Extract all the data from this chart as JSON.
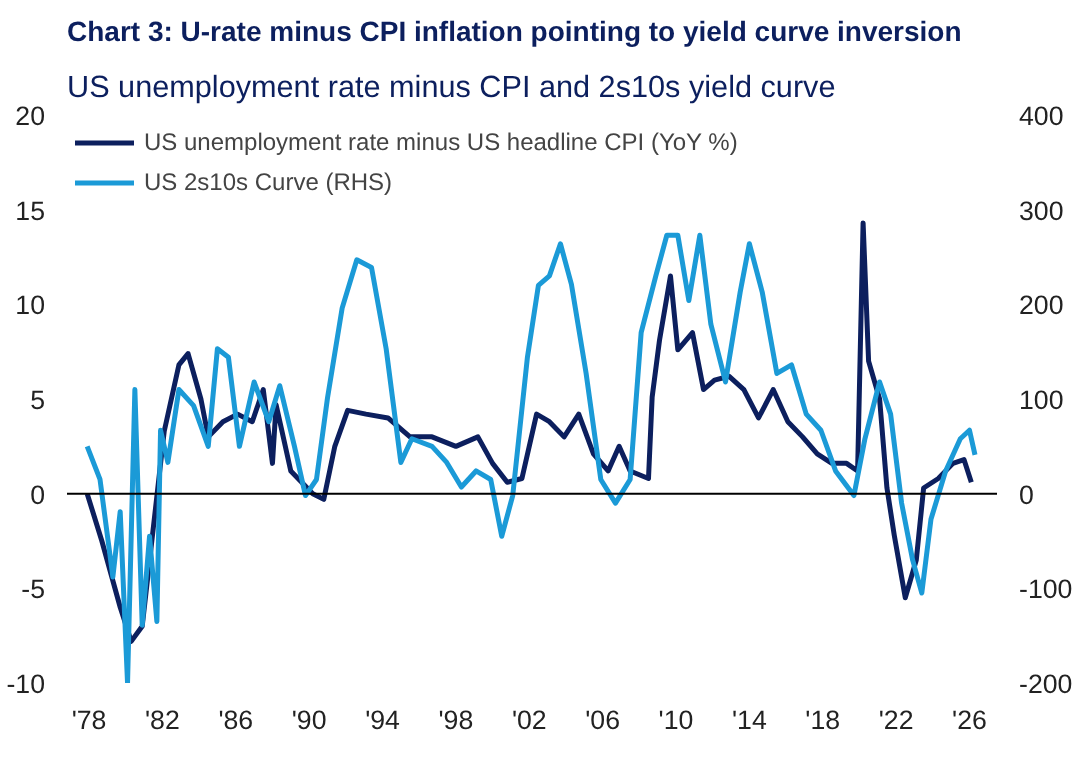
{
  "chart_data": {
    "type": "line",
    "title": "Chart 3: U-rate minus CPI inflation pointing to yield curve inversion",
    "subtitle": "US unemployment rate minus CPI and 2s10s yield curve",
    "series": [
      {
        "name": "US unemployment rate minus US headline CPI (YoY %)",
        "color": "#0c1f5e",
        "x": [
          1977.9,
          1978.7,
          1979.7,
          1980.3,
          1980.9,
          1982.1,
          1982.9,
          1983.4,
          1984.1,
          1984.5,
          1985.3,
          1986.1,
          1986.9,
          1987.5,
          1988.0,
          1988.2,
          1989.0,
          1990.2,
          1990.8,
          1991.4,
          1992.1,
          1993.1,
          1994.3,
          1995.5,
          1996.7,
          1998.0,
          1999.2,
          2000.0,
          2000.8,
          2001.6,
          2002.4,
          2003.1,
          2003.9,
          2004.7,
          2005.5,
          2006.3,
          2006.9,
          2007.5,
          2008.5,
          2008.7,
          2009.1,
          2009.7,
          2010.1,
          2010.9,
          2011.5,
          2012.1,
          2012.9,
          2013.7,
          2014.5,
          2015.3,
          2016.1,
          2016.9,
          2017.7,
          2018.5,
          2019.3,
          2019.9,
          2020.2,
          2020.5,
          2021.1,
          2021.5,
          2021.9,
          2022.5,
          2023.1,
          2023.5,
          2024.3,
          2025.1,
          2025.7,
          2026.1
        ],
        "values": [
          0,
          -2.5,
          -6,
          -7.8,
          -7,
          3.3,
          6.8,
          7.4,
          5,
          3,
          3.8,
          4.2,
          3.8,
          5.5,
          1.6,
          4.7,
          1.2,
          0,
          -0.3,
          2.5,
          4.4,
          4.2,
          4,
          3,
          3,
          2.5,
          3,
          1.6,
          0.6,
          0.8,
          4.2,
          3.8,
          3,
          4.2,
          2.1,
          1.2,
          2.5,
          1.2,
          0.8,
          5.1,
          8.1,
          11.5,
          7.6,
          8.5,
          5.5,
          6,
          6.2,
          5.5,
          4,
          5.5,
          3.8,
          3,
          2.1,
          1.6,
          1.6,
          1.2,
          14.3,
          7,
          5,
          0.3,
          -2.2,
          -5.5,
          -3.5,
          0.3,
          0.8,
          1.6,
          1.8,
          0.6
        ]
      },
      {
        "name": "US 2s10s Curve (RHS)",
        "color": "#1b9ad7",
        "axis": "y2",
        "x": [
          1977.9,
          1978.6,
          1979.3,
          1979.7,
          1980.1,
          1980.5,
          1980.9,
          1981.3,
          1981.7,
          1981.9,
          1982.3,
          1982.9,
          1983.7,
          1984.5,
          1985.0,
          1985.6,
          1986.2,
          1987.0,
          1987.8,
          1988.4,
          1989.2,
          1989.8,
          1990.4,
          1991.0,
          1991.8,
          1992.6,
          1993.4,
          1994.2,
          1995.0,
          1995.6,
          1996.7,
          1997.5,
          1998.3,
          1999.1,
          1999.9,
          2000.5,
          2001.1,
          2001.9,
          2002.5,
          2003.1,
          2003.7,
          2004.3,
          2005.1,
          2005.9,
          2006.7,
          2007.5,
          2008.1,
          2008.9,
          2009.5,
          2010.1,
          2010.7,
          2011.3,
          2011.9,
          2012.7,
          2013.5,
          2014.0,
          2014.7,
          2015.5,
          2016.3,
          2017.1,
          2017.9,
          2018.7,
          2019.7,
          2020.3,
          2021.1,
          2021.7,
          2022.3,
          2022.9,
          2023.4,
          2023.9,
          2024.7,
          2025.5,
          2026.0,
          2026.3
        ],
        "values": [
          50,
          15,
          -88,
          -19,
          -200,
          110,
          -139,
          -45,
          -135,
          67,
          33,
          110,
          93,
          50,
          153,
          144,
          50,
          118,
          76,
          114,
          50,
          -2,
          15,
          101,
          196,
          247,
          239,
          153,
          33,
          58,
          50,
          33,
          7,
          24,
          15,
          -45,
          -2,
          144,
          220,
          230,
          264,
          221,
          127,
          15,
          -10,
          15,
          170,
          230,
          273,
          273,
          204,
          273,
          179,
          118,
          213,
          264,
          213,
          127,
          136,
          84,
          67,
          24,
          -2,
          58,
          118,
          84,
          -10,
          -70,
          -105,
          -27,
          24,
          58,
          67,
          41
        ]
      }
    ],
    "xlim": [
      1976.8,
      2027.5
    ],
    "xticks": [
      {
        "value": 1978,
        "label": "'78"
      },
      {
        "value": 1982,
        "label": "'82"
      },
      {
        "value": 1986,
        "label": "'86"
      },
      {
        "value": 1990,
        "label": "'90"
      },
      {
        "value": 1994,
        "label": "'94"
      },
      {
        "value": 1998,
        "label": "'98"
      },
      {
        "value": 2002,
        "label": "'02"
      },
      {
        "value": 2006,
        "label": "'06"
      },
      {
        "value": 2010,
        "label": "'10"
      },
      {
        "value": 2014,
        "label": "'14"
      },
      {
        "value": 2018,
        "label": "'18"
      },
      {
        "value": 2022,
        "label": "'22"
      },
      {
        "value": 2026,
        "label": "'26"
      }
    ],
    "ylim": [
      -10,
      20
    ],
    "yticks": [
      -10,
      -5,
      0,
      5,
      10,
      15,
      20
    ],
    "y2lim": [
      -200,
      400
    ],
    "y2ticks": [
      -200,
      -100,
      0,
      100,
      200,
      300,
      400
    ],
    "ref_lines": [
      {
        "axis": "y",
        "value": 0,
        "color": "#000000"
      }
    ],
    "legend": "top left",
    "grid": false
  }
}
